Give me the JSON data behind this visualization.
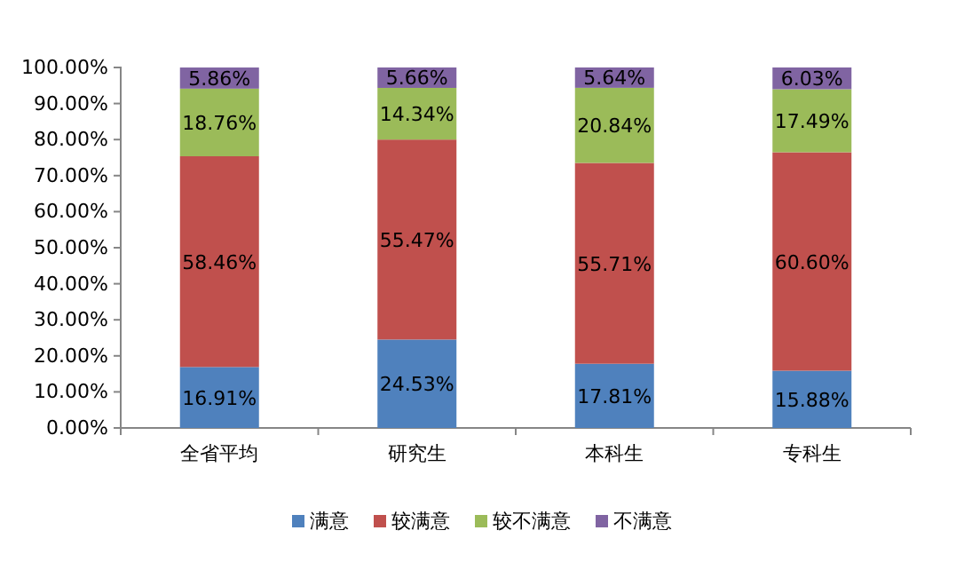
{
  "chart_data": {
    "type": "bar",
    "stacked": true,
    "categories": [
      "全省平均",
      "研究生",
      "本科生",
      "专科生"
    ],
    "series": [
      {
        "name": "满意",
        "color": "#4f81bd",
        "values": [
          16.91,
          24.53,
          17.81,
          15.88
        ],
        "value_labels": [
          "16.91%",
          "24.53%",
          "17.81%",
          "15.88%"
        ]
      },
      {
        "name": "较满意",
        "color": "#c0504d",
        "values": [
          58.46,
          55.47,
          55.71,
          60.6
        ],
        "value_labels": [
          "58.46%",
          "55.47%",
          "55.71%",
          "60.60%"
        ]
      },
      {
        "name": "较不满意",
        "color": "#9bbb59",
        "values": [
          18.76,
          14.34,
          20.84,
          17.49
        ],
        "value_labels": [
          "18.76%",
          "14.34%",
          "20.84%",
          "17.49%"
        ]
      },
      {
        "name": "不满意",
        "color": "#8064a2",
        "values": [
          5.86,
          5.66,
          5.64,
          6.03
        ],
        "value_labels": [
          "5.86%",
          "5.66%",
          "5.64%",
          "6.03%"
        ]
      }
    ],
    "ylim": [
      0,
      100
    ],
    "yticks": [
      {
        "value": 0,
        "label": "0.00%"
      },
      {
        "value": 10,
        "label": "10.00%"
      },
      {
        "value": 20,
        "label": "20.00%"
      },
      {
        "value": 30,
        "label": "30.00%"
      },
      {
        "value": 40,
        "label": "40.00%"
      },
      {
        "value": 50,
        "label": "50.00%"
      },
      {
        "value": 60,
        "label": "60.00%"
      },
      {
        "value": 70,
        "label": "70.00%"
      },
      {
        "value": 80,
        "label": "80.00%"
      },
      {
        "value": 90,
        "label": "90.00%"
      },
      {
        "value": 100,
        "label": "100.00%"
      }
    ],
    "grid": false,
    "legend": "bottom"
  }
}
